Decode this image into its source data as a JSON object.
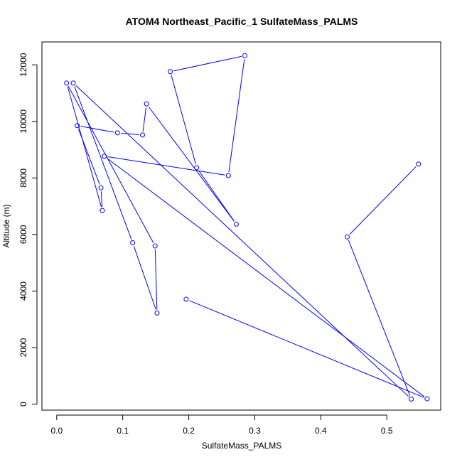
{
  "chart_data": {
    "type": "line",
    "title": "ATOM4 Northeast_Pacific_1 SulfateMass_PALMS",
    "xlabel": "SulfateMass_PALMS",
    "ylabel": "Altitude (m)",
    "xlim": [
      -0.0224,
      0.5816
    ],
    "ylim": [
      -210,
      12810
    ],
    "xticks": [
      0.0,
      0.1,
      0.2,
      0.3,
      0.4,
      0.5
    ],
    "xtick_labels": [
      "0.0",
      "0.1",
      "0.2",
      "0.3",
      "0.4",
      "0.5"
    ],
    "yticks": [
      0,
      2000,
      4000,
      6000,
      8000,
      10000,
      12000
    ],
    "ytick_labels": [
      "0",
      "2000",
      "4000",
      "6000",
      "8000",
      "10000",
      "12000"
    ],
    "grid": false,
    "legend": "none",
    "series": [
      {
        "color": "#0000ff",
        "marker": "open-circle",
        "points": [
          {
            "x": 0.548,
            "y": 8490
          },
          {
            "x": 0.44,
            "y": 5915
          },
          {
            "x": 0.537,
            "y": 180
          },
          {
            "x": 0.025,
            "y": 11355
          },
          {
            "x": 0.115,
            "y": 5710
          },
          {
            "x": 0.152,
            "y": 3225
          },
          {
            "x": 0.149,
            "y": 5595
          },
          {
            "x": 0.015,
            "y": 11355
          },
          {
            "x": 0.069,
            "y": 6850
          },
          {
            "x": 0.067,
            "y": 7650
          },
          {
            "x": 0.031,
            "y": 9850
          },
          {
            "x": 0.092,
            "y": 9595
          },
          {
            "x": 0.13,
            "y": 9520
          },
          {
            "x": 0.136,
            "y": 10620
          },
          {
            "x": 0.272,
            "y": 6365
          },
          {
            "x": 0.212,
            "y": 8365
          },
          {
            "x": 0.172,
            "y": 11760
          },
          {
            "x": 0.285,
            "y": 12325
          },
          {
            "x": 0.26,
            "y": 8085
          },
          {
            "x": 0.072,
            "y": 8770
          },
          {
            "x": 0.561,
            "y": 190
          },
          {
            "x": 0.196,
            "y": 3710
          }
        ]
      }
    ]
  }
}
